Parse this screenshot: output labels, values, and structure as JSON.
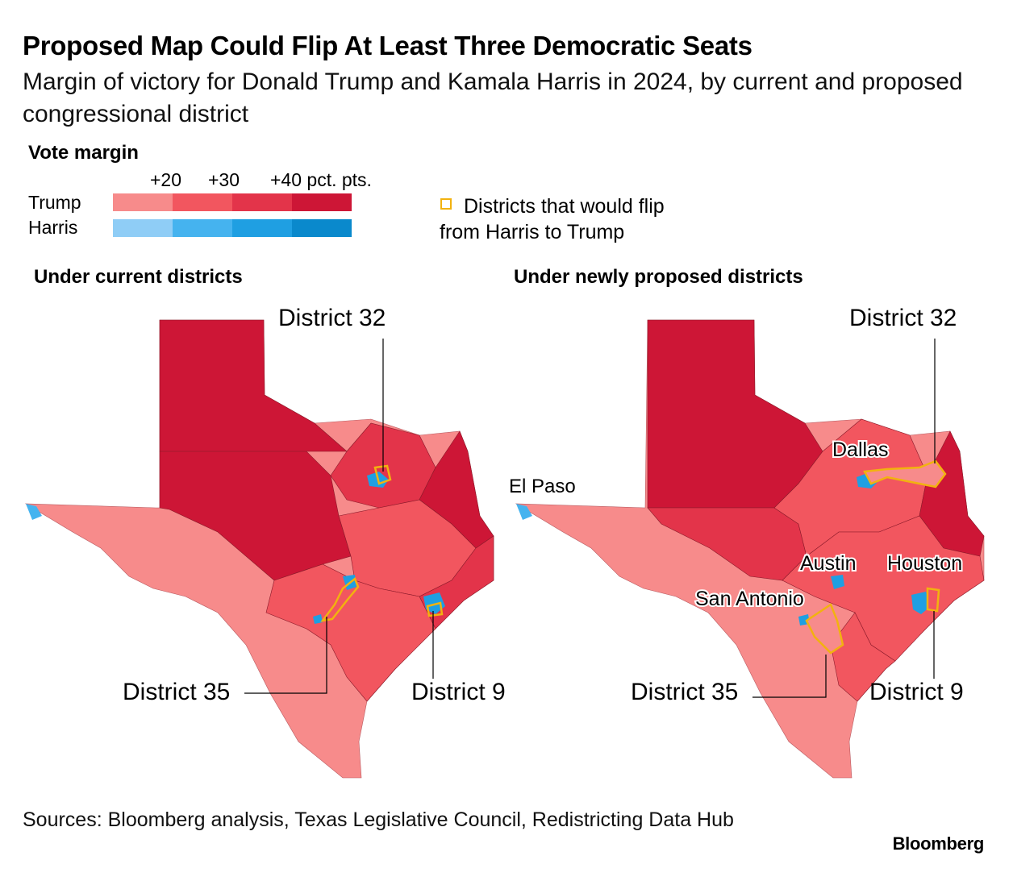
{
  "title": "Proposed Map Could Flip At Least Three Democratic Seats",
  "subtitle": "Margin of victory for Donald Trump and Kamala Harris in 2024, by current and proposed congressional district",
  "legend": {
    "title": "Vote margin",
    "ticks": [
      "+20",
      "+30",
      "+40 pct. pts."
    ],
    "trump_label": "Trump",
    "harris_label": "Harris",
    "trump_colors": [
      "#f78b8b",
      "#f2565f",
      "#e3344a",
      "#cd1636"
    ],
    "harris_colors": [
      "#8fcdf6",
      "#45b3ef",
      "#1f9fe2",
      "#0a89cc"
    ],
    "flip_label": "Districts that would flip from Harris to Trump",
    "flip_color": "#f2b20f"
  },
  "maps": {
    "current": {
      "title": "Under current districts",
      "labels": {
        "d32": "District 32",
        "d35": "District 35",
        "d9": "District 9"
      }
    },
    "proposed": {
      "title": "Under newly proposed districts",
      "labels": {
        "d32": "District 32",
        "d35": "District 35",
        "d9": "District 9",
        "dallas": "Dallas",
        "el_paso": "El Paso",
        "austin": "Austin",
        "houston": "Houston",
        "san_antonio": "San Antonio"
      }
    }
  },
  "source": "Sources: Bloomberg analysis, Texas Legislative Council, Redistricting Data Hub",
  "brand": "Bloomberg"
}
